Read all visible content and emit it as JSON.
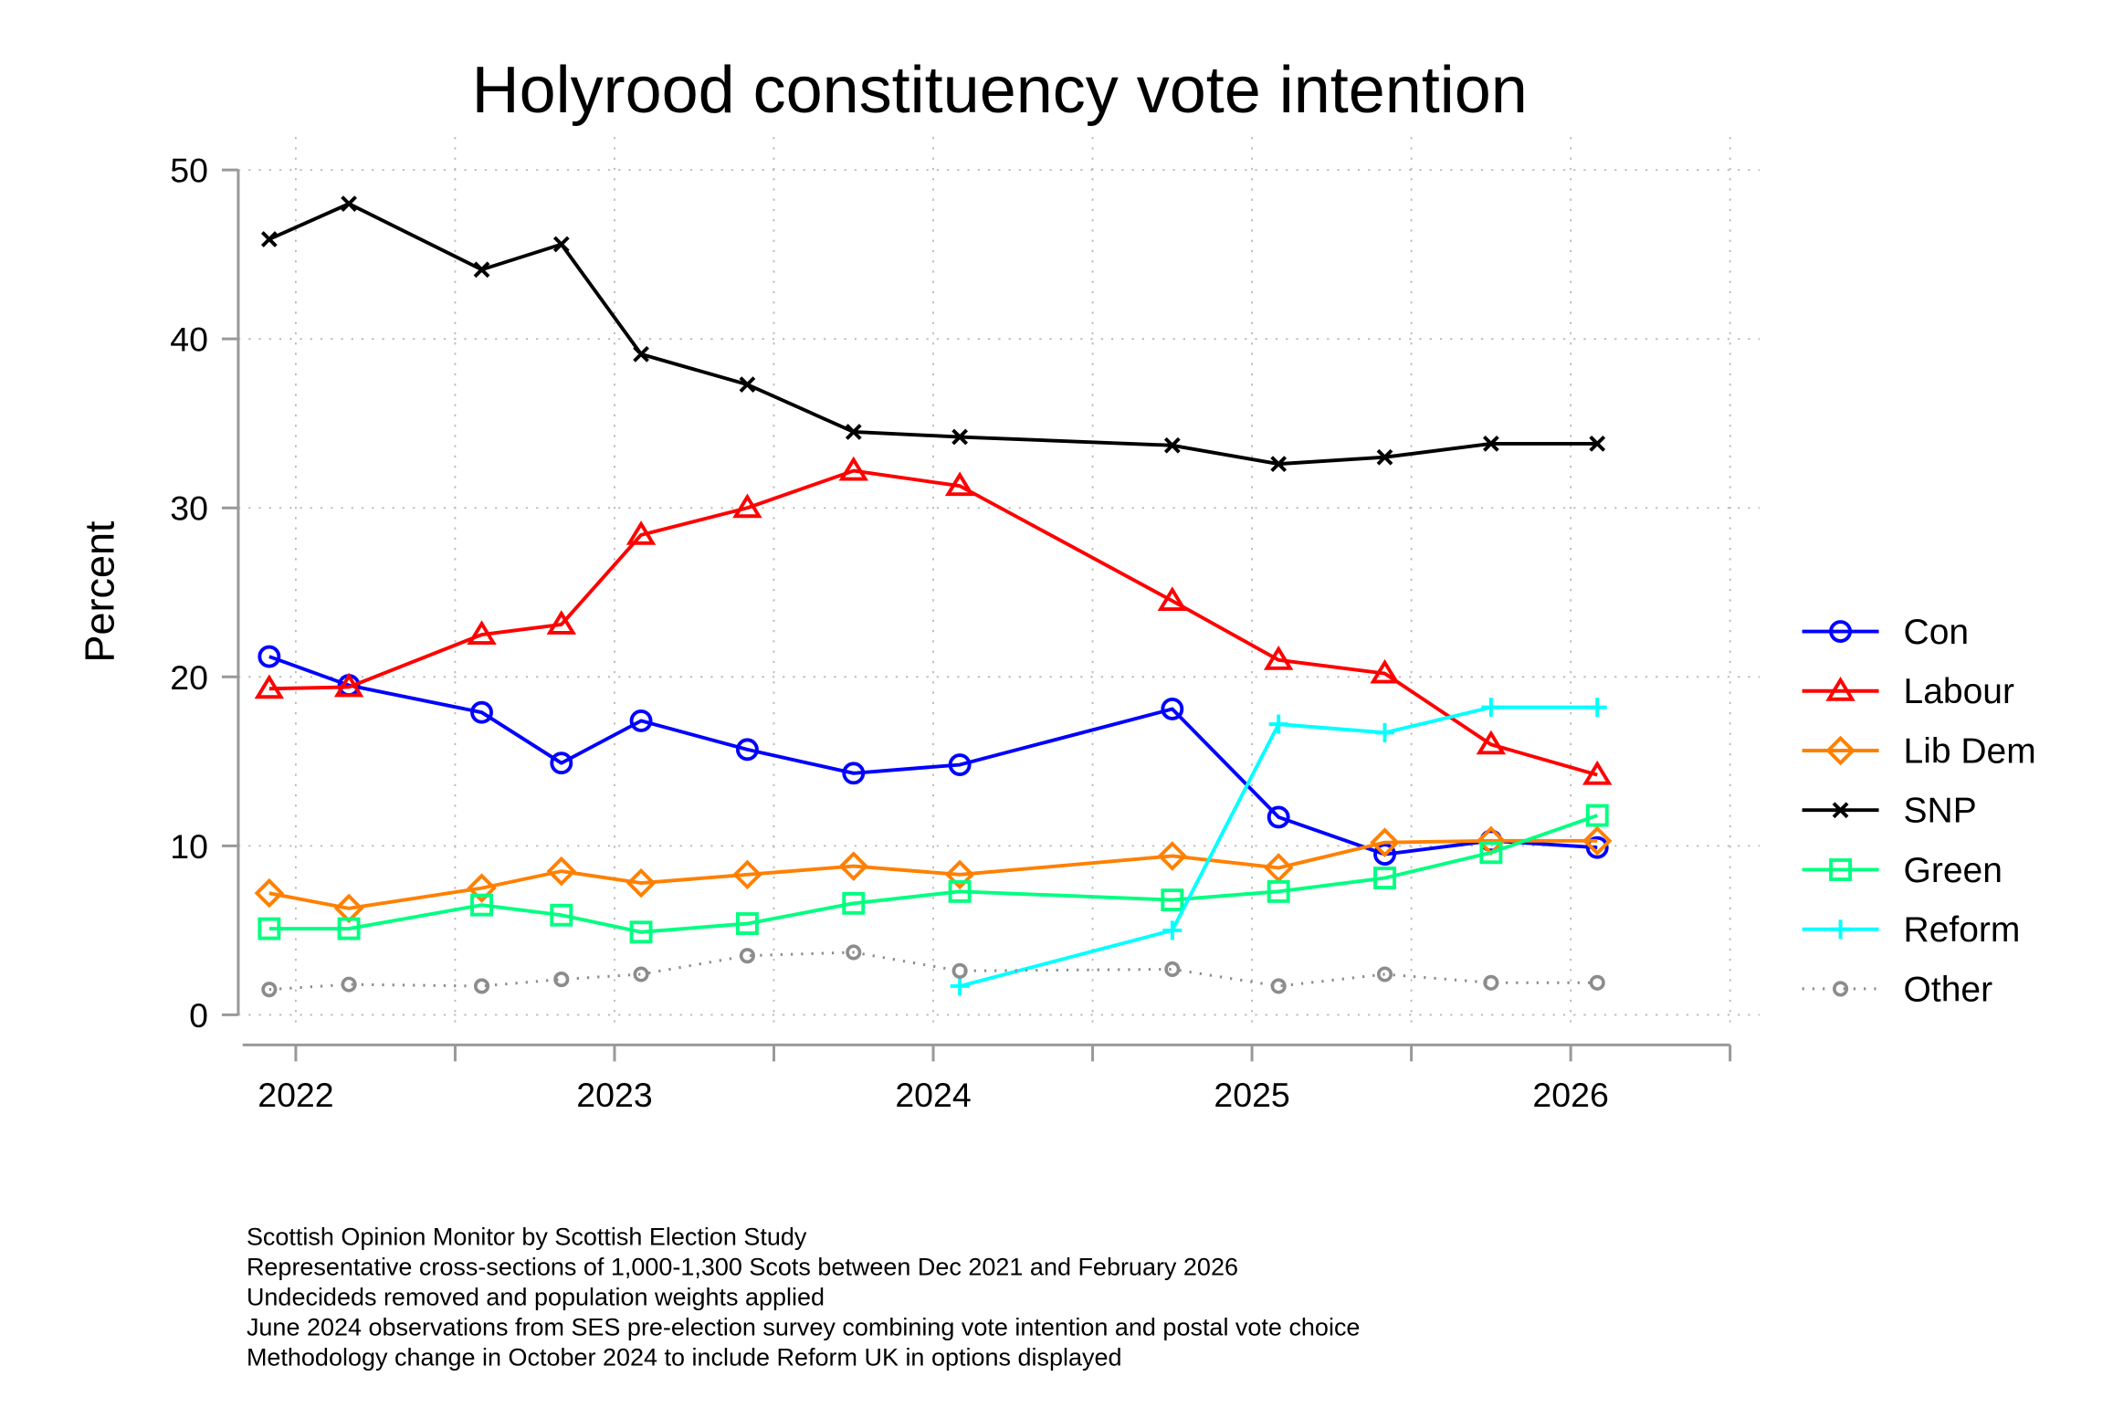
{
  "chart_data": {
    "type": "line",
    "title": "Holyrood constituency vote intention",
    "xlabel": "",
    "ylabel": "Percent",
    "ylim": [
      0,
      50
    ],
    "yticks": [
      0,
      10,
      20,
      30,
      40,
      50
    ],
    "xticks": [
      "2022",
      "2023",
      "2024",
      "2025",
      "2026"
    ],
    "xlim": [
      "2021-11",
      "2026-07"
    ],
    "grid": true,
    "legend_position": "right",
    "x": [
      "2021-12",
      "2022-03",
      "2022-08",
      "2022-11",
      "2023-02",
      "2023-06",
      "2023-10",
      "2024-02",
      "2024-10",
      "2025-02",
      "2025-06",
      "2025-10",
      "2026-02"
    ],
    "series": [
      {
        "name": "Con",
        "color": "#0000ff",
        "marker": "circle",
        "style": "solid",
        "values": [
          21.2,
          19.5,
          17.9,
          14.9,
          17.4,
          15.7,
          14.3,
          14.8,
          18.1,
          11.7,
          9.5,
          10.3,
          9.9
        ]
      },
      {
        "name": "Labour",
        "color": "#ff0000",
        "marker": "triangle",
        "style": "solid",
        "values": [
          19.3,
          19.4,
          22.5,
          23.1,
          28.4,
          30.0,
          32.2,
          31.3,
          24.5,
          21.0,
          20.2,
          16.0,
          14.2
        ]
      },
      {
        "name": "Lib Dem",
        "color": "#ff8000",
        "marker": "diamond",
        "style": "solid",
        "values": [
          7.2,
          6.3,
          7.5,
          8.5,
          7.8,
          8.3,
          8.8,
          8.3,
          9.4,
          8.7,
          10.2,
          10.3,
          10.3
        ]
      },
      {
        "name": "SNP",
        "color": "#000000",
        "marker": "x",
        "style": "solid",
        "values": [
          45.9,
          48.0,
          44.1,
          45.6,
          39.1,
          37.3,
          34.5,
          34.2,
          33.7,
          32.6,
          33.0,
          33.8,
          33.8
        ]
      },
      {
        "name": "Green",
        "color": "#00ff80",
        "marker": "square",
        "style": "solid",
        "values": [
          5.1,
          5.1,
          6.5,
          5.9,
          4.9,
          5.4,
          6.6,
          7.3,
          6.8,
          7.3,
          8.1,
          9.6,
          11.8
        ]
      },
      {
        "name": "Reform",
        "color": "#00ffff",
        "marker": "plus",
        "style": "solid",
        "values": [
          null,
          null,
          null,
          null,
          null,
          null,
          null,
          1.7,
          5.0,
          17.2,
          16.7,
          18.2,
          18.2
        ]
      },
      {
        "name": "Other",
        "color": "#8c8c8c",
        "marker": "small-circle",
        "style": "dotted",
        "values": [
          1.5,
          1.8,
          1.7,
          2.1,
          2.4,
          3.5,
          3.7,
          2.6,
          2.7,
          1.7,
          2.4,
          1.9,
          1.9
        ]
      }
    ],
    "notes": [
      "Scottish Opinion Monitor by Scottish Election Study",
      "Representative cross-sections of 1,000-1,300 Scots between Dec 2021 and February 2026",
      "Undecideds removed and population weights applied",
      "June 2024 observations from SES pre-election survey combining vote intention and postal vote choice",
      "Methodology change in October 2024 to include Reform UK in options displayed"
    ]
  }
}
